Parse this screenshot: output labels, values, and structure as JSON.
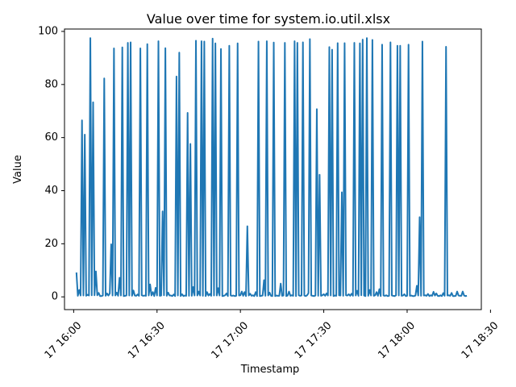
{
  "chart_data": {
    "type": "line",
    "title": "Value over time for system.io.util.xlsx",
    "xlabel": "Timestamp",
    "ylabel": "Value",
    "x_range_minutes": [
      -3.3,
      146.7
    ],
    "ylim": [
      -4.8,
      100.9
    ],
    "grid": false,
    "legend": "none",
    "series_color": "#1f77b4",
    "x_unit": "minutes after 17 16:00",
    "x_ticks": [
      {
        "minutes": 0,
        "label": "17 16:00"
      },
      {
        "minutes": 30,
        "label": "17 16:30"
      },
      {
        "minutes": 60,
        "label": "17 17:00"
      },
      {
        "minutes": 90,
        "label": "17 17:30"
      },
      {
        "minutes": 120,
        "label": "17 18:00"
      },
      {
        "minutes": 150,
        "label": "17 18:30"
      }
    ],
    "y_ticks": [
      0,
      20,
      40,
      60,
      80,
      100
    ],
    "x_start_minutes": 1.0,
    "x_step_minutes": 0.5,
    "series": [
      {
        "values": [
          9.2,
          0.4,
          2.6,
          0.5,
          66.5,
          0.5,
          61.1,
          0.4,
          0.8,
          0.5,
          97.5,
          0.6,
          73.3,
          0.6,
          9.6,
          0.6,
          1.5,
          0.3,
          0.3,
          0.5,
          82.3,
          0.4,
          1.3,
          0.5,
          1.3,
          19.8,
          0.5,
          93.6,
          0.5,
          1.6,
          0.4,
          7.2,
          0.5,
          94.0,
          0.3,
          0.4,
          0.5,
          95.7,
          0.5,
          95.9,
          0.4,
          2.4,
          0.5,
          0.4,
          0.9,
          0.4,
          93.6,
          0.6,
          0.4,
          0.5,
          0.4,
          95.2,
          0.5,
          4.7,
          0.5,
          1.8,
          0.3,
          3.4,
          0.5,
          96.3,
          0.4,
          0.5,
          32.2,
          0.6,
          93.7,
          0.4,
          1.6,
          0.5,
          0.5,
          0.3,
          0.9,
          0.3,
          83.0,
          0.5,
          92.0,
          0.3,
          1.0,
          0.3,
          0.5,
          0.4,
          69.3,
          0.4,
          57.6,
          0.4,
          3.7,
          0.5,
          96.5,
          0.5,
          2.0,
          0.5,
          96.3,
          0.4,
          96.2,
          0.3,
          1.8,
          0.5,
          1.1,
          0.4,
          97.3,
          0.5,
          95.5,
          0.5,
          3.3,
          0.5,
          93.4,
          0.3,
          0.4,
          0.6,
          1.3,
          0.3,
          94.6,
          0.5,
          0.4,
          0.5,
          0.3,
          0.4,
          95.5,
          0.5,
          0.6,
          2.0,
          0.4,
          1.8,
          0.3,
          26.6,
          0.5,
          1.2,
          0.4,
          0.6,
          0.3,
          1.8,
          0.3,
          96.2,
          0.3,
          0.4,
          0.5,
          6.3,
          0.4,
          96.3,
          0.5,
          1.6,
          0.4,
          0.3,
          95.8,
          0.3,
          0.5,
          0.4,
          0.4,
          5.0,
          0.4,
          0.5,
          95.7,
          0.3,
          0.5,
          2.0,
          0.4,
          0.6,
          0.4,
          96.3,
          0.3,
          95.7,
          0.6,
          0.4,
          0.5,
          95.9,
          0.5,
          0.3,
          0.6,
          1.4,
          97.1,
          0.5,
          0.4,
          0.3,
          0.5,
          70.7,
          0.4,
          46.0,
          0.4,
          0.6,
          1.0,
          0.4,
          1.3,
          0.5,
          94.1,
          0.5,
          93.1,
          0.3,
          0.5,
          0.4,
          95.6,
          0.6,
          0.5,
          39.4,
          0.4,
          95.6,
          0.6,
          0.5,
          1.0,
          0.4,
          1.2,
          0.4,
          95.7,
          0.5,
          2.3,
          0.4,
          95.5,
          0.6,
          96.9,
          0.5,
          0.3,
          97.5,
          0.4,
          2.6,
          0.5,
          96.8,
          0.4,
          0.6,
          1.8,
          0.4,
          2.9,
          0.3,
          95.0,
          0.5,
          0.4,
          0.6,
          0.3,
          0.4,
          95.9,
          0.5,
          0.4,
          0.3,
          0.6,
          94.6,
          0.5,
          94.6,
          0.4,
          0.5,
          1.0,
          0.3,
          0.4,
          95.0,
          0.4,
          0.5,
          0.3,
          0.3,
          0.5,
          4.2,
          0.5,
          30.0,
          0.4,
          96.2,
          0.5,
          0.6,
          0.4,
          1.1,
          0.3,
          0.6,
          0.4,
          1.9,
          0.5,
          1.3,
          0.4,
          0.3,
          0.6,
          0.3,
          1.4,
          0.4,
          94.2,
          0.5,
          0.6,
          0.4,
          1.5,
          0.3,
          0.3,
          0.4,
          2.0,
          0.5,
          0.4,
          0.4,
          2.0,
          0.5,
          0.3,
          0.4
        ]
      }
    ]
  }
}
